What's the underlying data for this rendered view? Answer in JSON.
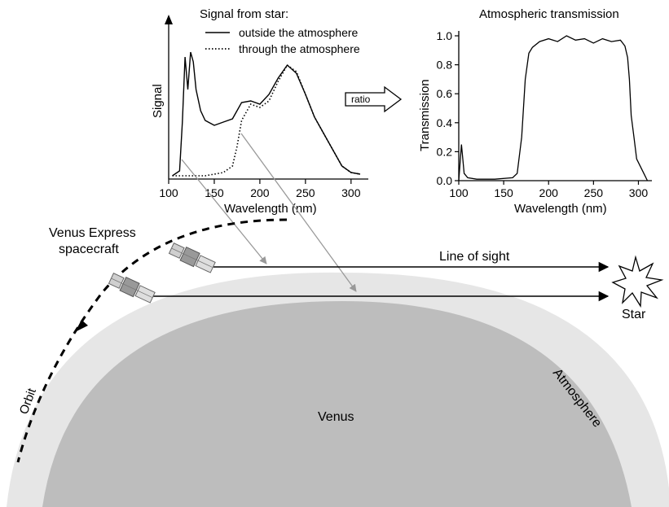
{
  "colors": {
    "planet": "#bdbdbd",
    "atmosphere": "#e6e6e6",
    "line": "#000000",
    "arrow_gray": "#999999"
  },
  "left_chart": {
    "title": "Signal from star:",
    "legend_solid": "outside the atmosphere",
    "legend_dotted": "through the atmosphere",
    "ylabel": "Signal",
    "xlabel": "Wavelength (nm)",
    "xticks": [
      "100",
      "150",
      "200",
      "250",
      "300"
    ]
  },
  "ratio_label": "ratio",
  "right_chart": {
    "title": "Atmospheric transmission",
    "ylabel": "Transmission",
    "xlabel": "Wavelength (nm)",
    "xticks": [
      "100",
      "150",
      "200",
      "250",
      "300"
    ],
    "yticks": [
      "0.0",
      "0.2",
      "0.4",
      "0.6",
      "0.8",
      "1.0"
    ]
  },
  "labels": {
    "spacecraft_line1": "Venus Express",
    "spacecraft_line2": "spacecraft",
    "line_of_sight": "Line of sight",
    "star": "Star",
    "orbit": "Orbit",
    "venus": "Venus",
    "atmosphere": "Atmosphere"
  },
  "icons": {
    "spacecraft": "spacecraft-icon",
    "star": "star-burst-icon"
  },
  "chart_data": [
    {
      "type": "line",
      "title": "Signal from star:",
      "xlabel": "Wavelength (nm)",
      "ylabel": "Signal",
      "xlim": [
        100,
        310
      ],
      "series": [
        {
          "name": "outside the atmosphere",
          "x": [
            104,
            112,
            115,
            118,
            121,
            124,
            127,
            130,
            135,
            140,
            150,
            160,
            170,
            180,
            190,
            200,
            210,
            220,
            230,
            240,
            250,
            260,
            270,
            280,
            290,
            300,
            310
          ],
          "y": [
            0.02,
            0.05,
            0.35,
            0.75,
            0.55,
            0.78,
            0.72,
            0.55,
            0.42,
            0.36,
            0.33,
            0.35,
            0.37,
            0.47,
            0.48,
            0.46,
            0.52,
            0.62,
            0.7,
            0.65,
            0.52,
            0.38,
            0.28,
            0.18,
            0.08,
            0.04,
            0.03
          ]
        },
        {
          "name": "through the atmosphere",
          "x": [
            104,
            120,
            140,
            160,
            170,
            175,
            180,
            190,
            200,
            210,
            220,
            230,
            240,
            250,
            260,
            270,
            280,
            290,
            300,
            310
          ],
          "y": [
            0.02,
            0.02,
            0.02,
            0.04,
            0.08,
            0.2,
            0.36,
            0.46,
            0.44,
            0.48,
            0.6,
            0.7,
            0.66,
            0.52,
            0.38,
            0.28,
            0.18,
            0.08,
            0.04,
            0.03
          ]
        }
      ]
    },
    {
      "type": "line",
      "title": "Atmospheric transmission",
      "xlabel": "Wavelength (nm)",
      "ylabel": "Transmission",
      "xlim": [
        100,
        315
      ],
      "ylim": [
        0,
        1.0
      ],
      "series": [
        {
          "x": [
            100,
            103,
            106,
            110,
            120,
            140,
            160,
            165,
            170,
            174,
            178,
            182,
            190,
            200,
            210,
            220,
            230,
            240,
            250,
            260,
            270,
            280,
            285,
            288,
            290,
            292,
            295,
            298,
            302,
            306,
            310
          ],
          "y": [
            0.0,
            0.25,
            0.05,
            0.02,
            0.01,
            0.01,
            0.02,
            0.05,
            0.3,
            0.7,
            0.88,
            0.92,
            0.96,
            0.98,
            0.96,
            1.0,
            0.97,
            0.98,
            0.95,
            0.98,
            0.96,
            0.97,
            0.93,
            0.85,
            0.7,
            0.45,
            0.3,
            0.15,
            0.1,
            0.05,
            0.0
          ]
        }
      ]
    }
  ]
}
